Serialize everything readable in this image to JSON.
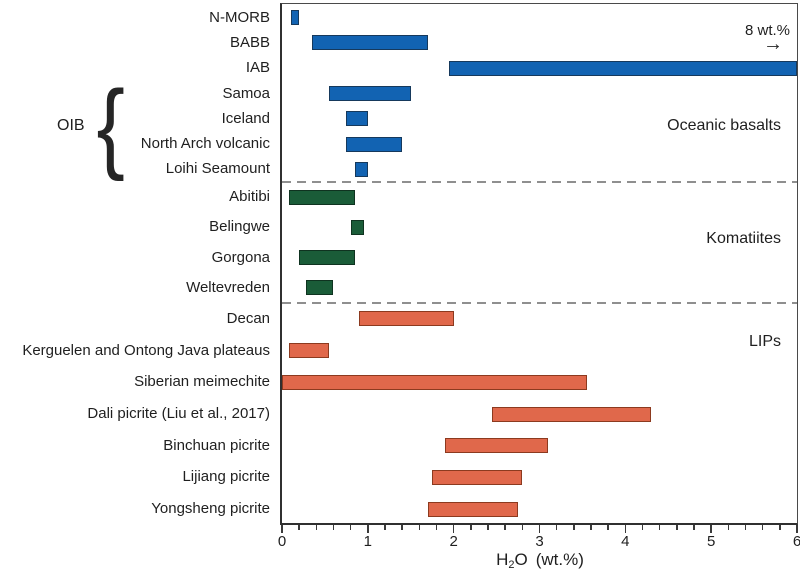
{
  "chart_data": {
    "type": "bar",
    "orientation": "horizontal-range",
    "title": "",
    "xlabel": "H2O (wt.%)",
    "xlabel_parts": {
      "prefix": "H",
      "sub": "2",
      "after_sub": "O",
      "unit": "(wt.%)"
    },
    "xlim": [
      0,
      6
    ],
    "x_major_ticks": [
      0,
      1,
      2,
      3,
      4,
      5,
      6
    ],
    "x_minor_tick_step": 0.2,
    "grid": false,
    "legend_position": "none",
    "annotation": {
      "text": "8 wt.%",
      "arrow": "→",
      "meaning": "IAB bar extends beyond right axis limit up to 8 wt.%"
    },
    "brace_group": {
      "label": "OIB",
      "brace": "{",
      "members": [
        "Samoa",
        "Iceland",
        "North Arch volcanic",
        "Loihi Seamount"
      ]
    },
    "groups": [
      {
        "name": "Oceanic basalts",
        "color": "#1263B2",
        "border_color": "#16395C",
        "rows": [
          {
            "label": "N-MORB",
            "range": [
              0.1,
              0.2
            ]
          },
          {
            "label": "BABB",
            "range": [
              0.35,
              1.7
            ]
          },
          {
            "label": "IAB",
            "range": [
              1.95,
              6.0
            ],
            "extends_beyond_axis": true
          },
          {
            "label": "Samoa",
            "range": [
              0.55,
              1.5
            ]
          },
          {
            "label": "Iceland",
            "range": [
              0.75,
              1.0
            ]
          },
          {
            "label": "North Arch volcanic",
            "range": [
              0.75,
              1.4
            ]
          },
          {
            "label": "Loihi Seamount",
            "range": [
              0.85,
              1.0
            ]
          }
        ]
      },
      {
        "name": "Komatiites",
        "color": "#1A5C38",
        "border_color": "#0F3320",
        "rows": [
          {
            "label": "Abitibi",
            "range": [
              0.08,
              0.85
            ]
          },
          {
            "label": "Belingwe",
            "range": [
              0.8,
              0.95
            ]
          },
          {
            "label": "Gorgona",
            "range": [
              0.2,
              0.85
            ]
          },
          {
            "label": "Weltevreden",
            "range": [
              0.28,
              0.6
            ]
          }
        ]
      },
      {
        "name": "LIPs",
        "color": "#E0684B",
        "border_color": "#8C3A1F",
        "rows": [
          {
            "label": "Decan",
            "range": [
              0.9,
              2.0
            ]
          },
          {
            "label": "Kerguelen and Ontong Java plateaus",
            "range": [
              0.08,
              0.55
            ]
          },
          {
            "label": "Siberian meimechite",
            "range": [
              0.0,
              3.55
            ]
          },
          {
            "label": "Dali picrite (Liu et al., 2017)",
            "range": [
              2.45,
              4.3
            ]
          },
          {
            "label": "Binchuan picrite",
            "range": [
              1.9,
              3.1
            ]
          },
          {
            "label": "Lijiang picrite",
            "range": [
              1.75,
              2.8
            ]
          },
          {
            "label": "Yongsheng picrite",
            "range": [
              1.7,
              2.75
            ]
          }
        ]
      }
    ],
    "colors": {
      "axis": "#3A3A3A",
      "text": "#1F1F1F",
      "separator": "#8F8F8F",
      "background": "#FFFFFF"
    }
  }
}
